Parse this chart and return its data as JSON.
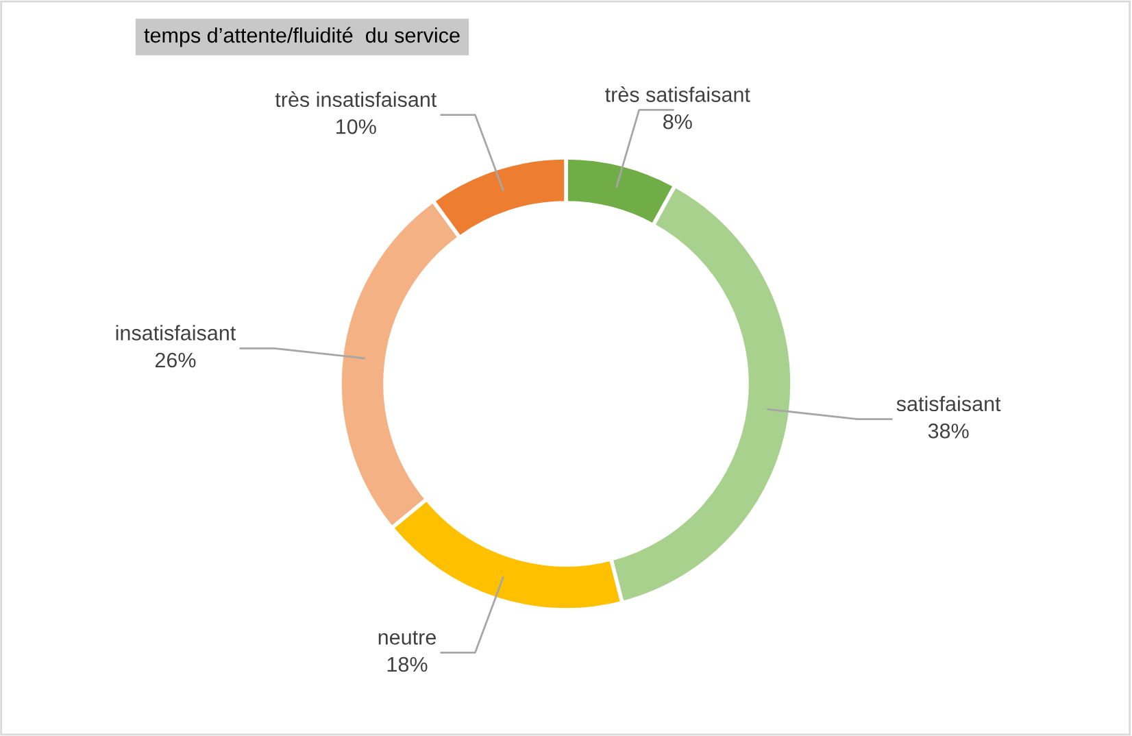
{
  "chart_data": {
    "type": "donut",
    "title": "temps d’attente/fluidité  du service",
    "categories": [
      "très satisfaisant",
      "satisfaisant",
      "neutre",
      "insatisfaisant",
      "très insatisfaisant"
    ],
    "values": [
      8,
      38,
      18,
      26,
      10
    ],
    "colors": [
      "#70ad47",
      "#a9d18e",
      "#ffc000",
      "#f4b183",
      "#ed7d31"
    ],
    "value_labels": [
      "8%",
      "38%",
      "18%",
      "26%",
      "10%"
    ],
    "legend": false
  }
}
